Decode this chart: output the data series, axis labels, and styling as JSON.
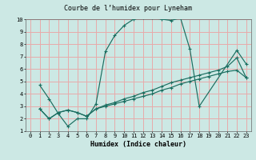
{
  "title": "Courbe de l’humidex pour Lyneham",
  "xlabel": "Humidex (Indice chaleur)",
  "xlim": [
    -0.5,
    23.5
  ],
  "ylim": [
    1,
    10
  ],
  "xticks": [
    0,
    1,
    2,
    3,
    4,
    5,
    6,
    7,
    8,
    9,
    10,
    11,
    12,
    13,
    14,
    15,
    16,
    17,
    18,
    19,
    20,
    21,
    22,
    23
  ],
  "yticks": [
    1,
    2,
    3,
    4,
    5,
    6,
    7,
    8,
    9,
    10
  ],
  "bg_color": "#cce8e4",
  "grid_color": "#e8aaaa",
  "line_color": "#1a6e60",
  "line1_x": [
    1,
    2,
    3,
    4,
    5,
    6,
    7,
    8,
    9,
    10,
    11,
    12,
    13,
    14,
    15,
    16,
    17,
    18,
    22,
    23
  ],
  "line1_y": [
    4.7,
    3.6,
    2.4,
    1.4,
    2.0,
    2.0,
    3.2,
    7.4,
    8.7,
    9.5,
    10.0,
    10.1,
    10.1,
    10.0,
    9.9,
    10.1,
    7.6,
    3.0,
    7.5,
    6.4
  ],
  "line2_x": [
    1,
    2,
    3,
    4,
    5,
    6,
    7,
    8,
    9,
    10,
    11,
    12,
    13,
    14,
    15,
    16,
    17,
    18,
    19,
    20,
    21,
    22,
    23
  ],
  "line2_y": [
    2.8,
    2.0,
    2.5,
    2.7,
    2.5,
    2.2,
    2.8,
    3.1,
    3.3,
    3.6,
    3.8,
    4.1,
    4.3,
    4.6,
    4.9,
    5.1,
    5.3,
    5.5,
    5.7,
    5.9,
    6.2,
    6.9,
    5.3
  ],
  "line3_x": [
    1,
    2,
    3,
    4,
    5,
    6,
    7,
    8,
    9,
    10,
    11,
    12,
    13,
    14,
    15,
    16,
    17,
    18,
    19,
    20,
    21,
    22,
    23
  ],
  "line3_y": [
    2.8,
    2.0,
    2.5,
    2.7,
    2.5,
    2.2,
    2.8,
    3.0,
    3.2,
    3.4,
    3.6,
    3.8,
    4.0,
    4.3,
    4.5,
    4.8,
    5.0,
    5.2,
    5.4,
    5.6,
    5.8,
    5.9,
    5.3
  ],
  "title_fontsize": 6.0,
  "axis_fontsize": 6.0,
  "tick_fontsize": 5.0
}
